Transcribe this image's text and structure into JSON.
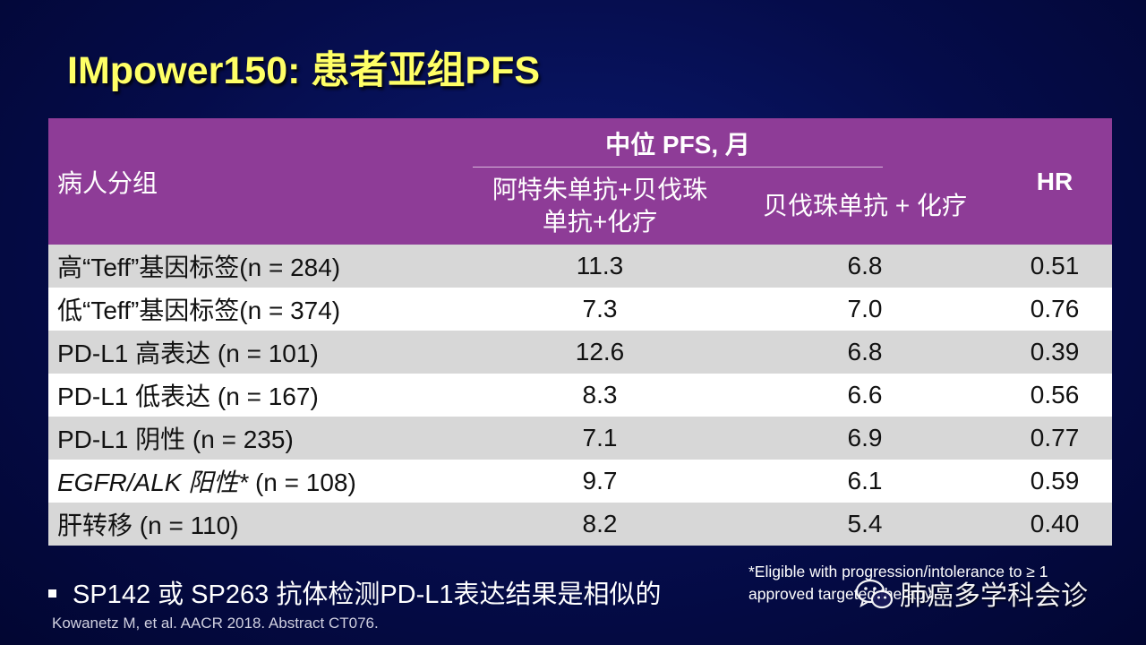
{
  "title": "IMpower150: 患者亚组PFS",
  "table": {
    "headers": {
      "group": "病人分组",
      "median_pfs": "中位 PFS, 月",
      "arm1_line1": "阿特朱单抗+贝伐珠",
      "arm1_line2": "单抗+化疗",
      "arm2": "贝伐珠单抗 + 化疗",
      "hr": "HR"
    },
    "rows": [
      {
        "label": "高“Teff”基因标签(n = 284)",
        "arm1": "11.3",
        "arm2": "6.8",
        "hr": "0.51"
      },
      {
        "label": "低“Teff”基因标签(n = 374)",
        "arm1": "7.3",
        "arm2": "7.0",
        "hr": "0.76"
      },
      {
        "label": "PD-L1 高表达 (n = 101)",
        "arm1": "12.6",
        "arm2": "6.8",
        "hr": "0.39"
      },
      {
        "label": "PD-L1 低表达 (n = 167)",
        "arm1": "8.3",
        "arm2": "6.6",
        "hr": "0.56"
      },
      {
        "label": "PD-L1 阴性 (n = 235)",
        "arm1": "7.1",
        "arm2": "6.9",
        "hr": "0.77"
      },
      {
        "label_italic": "EGFR/ALK 阳性*",
        "label_rest": " (n = 108)",
        "arm1": "9.7",
        "arm2": "6.1",
        "hr": "0.59"
      },
      {
        "label": "肝转移 (n = 110)",
        "arm1": "8.2",
        "arm2": "5.4",
        "hr": "0.40"
      }
    ]
  },
  "bullet": "SP142 或 SP263 抗体检测PD-L1表达结果是相似的",
  "footnote": "*Eligible with progression/intolerance to ≥ 1 approved targeted therapy",
  "citation": "Kowanetz M, et al. AACR 2018. Abstract CT076.",
  "watermark": "肺癌多学科会诊",
  "colors": {
    "background": "#050c4a",
    "title": "#ffff66",
    "header": "#8e3c97",
    "row_shaded": "#d7d7d7",
    "row_plain": "#ffffff"
  },
  "icons": {
    "bullet": "square-bullet-icon",
    "watermark": "wechat-icon"
  }
}
